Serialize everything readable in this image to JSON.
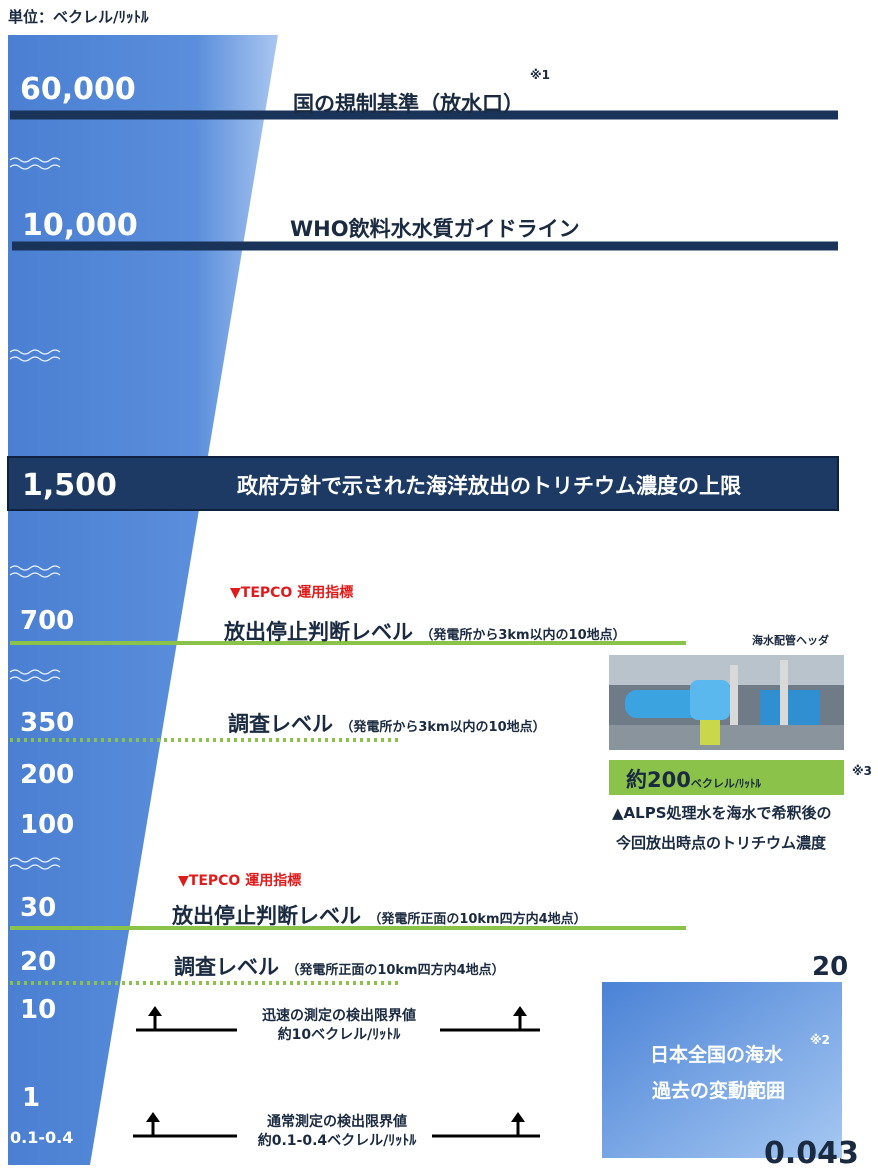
{
  "unit": "単位：ベクレル/ﾘｯﾄﾙ",
  "scale": [
    "60,000",
    "10,000",
    "1,500",
    "700",
    "350",
    "200",
    "100",
    "30",
    "20",
    "10",
    "1",
    "0.1-0.4"
  ],
  "regulatory": {
    "text": "国の規制基準（放水口）",
    "note": "※1"
  },
  "who": {
    "text": "WHO飲料水水質ガイドライン"
  },
  "government": {
    "text": "政府方針で示された海洋放出のトリチウム濃度の上限"
  },
  "tepco_tags": [
    "▼TEPCO 運用指標",
    "▼TEPCO 運用指標"
  ],
  "near": {
    "stop": "放出停止判断レベル",
    "survey": "調査レベル",
    "area": "（発電所から3km以内の10地点）"
  },
  "far": {
    "stop": "放出停止判断レベル",
    "survey": "調査レベル",
    "area": "（発電所正面の10km四方内4地点）"
  },
  "detection": [
    {
      "title": "迅速の測定の検出限界値",
      "value": "約10ベクレル/ﾘｯﾄﾙ"
    },
    {
      "title": "通常測定の検出限界値",
      "value": "約0.1-0.4ベクレル/ﾘｯﾄﾙ"
    }
  ],
  "photo": {
    "caption": "海水配管ヘッダ",
    "value": "約200",
    "unit": "ベクレル/ﾘｯﾄﾙ",
    "note": "※3",
    "description": [
      "▲ALPS処理水を海水で希釈後の",
      "今回放出時点のトリチウム濃度"
    ]
  },
  "seawater": {
    "max": "20",
    "title": "日本全国の海水",
    "note": "※2",
    "subtitle": "過去の変動範囲",
    "min": "0.043"
  }
}
